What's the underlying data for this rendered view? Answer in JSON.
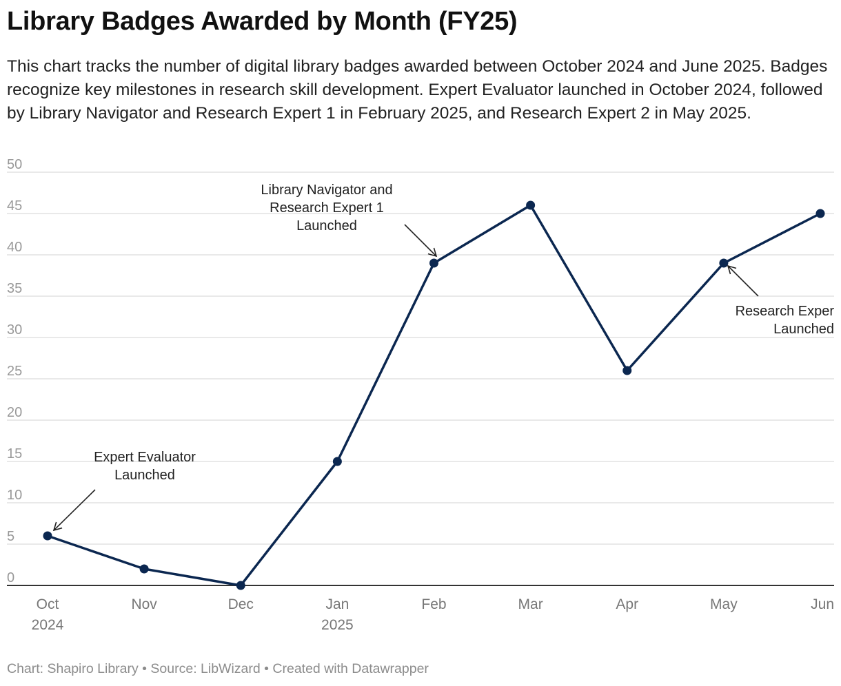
{
  "title": "Library Badges Awarded by Month (FY25)",
  "subtitle": "This chart tracks the number of digital library badges awarded between October 2024 and June 2025. Badges recognize key milestones in research skill development. Expert Evaluator launched in October 2024, followed by Library Navigator and Research Expert 1 in February 2025, and Research Expert 2 in May 2025.",
  "footer": "Chart: Shapiro Library • Source: LibWizard • Created with Datawrapper",
  "colors": {
    "line": "#0b2750",
    "grid": "#e2e2e2",
    "axis": "#333333",
    "tick_text": "#999999",
    "month_text": "#777777"
  },
  "chart_data": {
    "type": "line",
    "title": "Library Badges Awarded by Month (FY25)",
    "categories": [
      "Oct",
      "Nov",
      "Dec",
      "Jan",
      "Feb",
      "Mar",
      "Apr",
      "May",
      "Jun"
    ],
    "category_sublabels": [
      "2024",
      "",
      "",
      "2025",
      "",
      "",
      "",
      "",
      ""
    ],
    "values": [
      6,
      2,
      0,
      15,
      39,
      46,
      26,
      39,
      45
    ],
    "ylim": [
      0,
      50
    ],
    "yticks": [
      0,
      5,
      10,
      15,
      20,
      25,
      30,
      35,
      40,
      45,
      50
    ],
    "grid": true,
    "legend": "none",
    "annotations": [
      {
        "index": 0,
        "lines": [
          "Expert Evaluator",
          "Launched"
        ]
      },
      {
        "index": 4,
        "lines": [
          "Library Navigator and",
          "Research Expert 1",
          "Launched"
        ]
      },
      {
        "index": 7,
        "lines": [
          "Research Exper",
          "Launched"
        ]
      }
    ]
  }
}
